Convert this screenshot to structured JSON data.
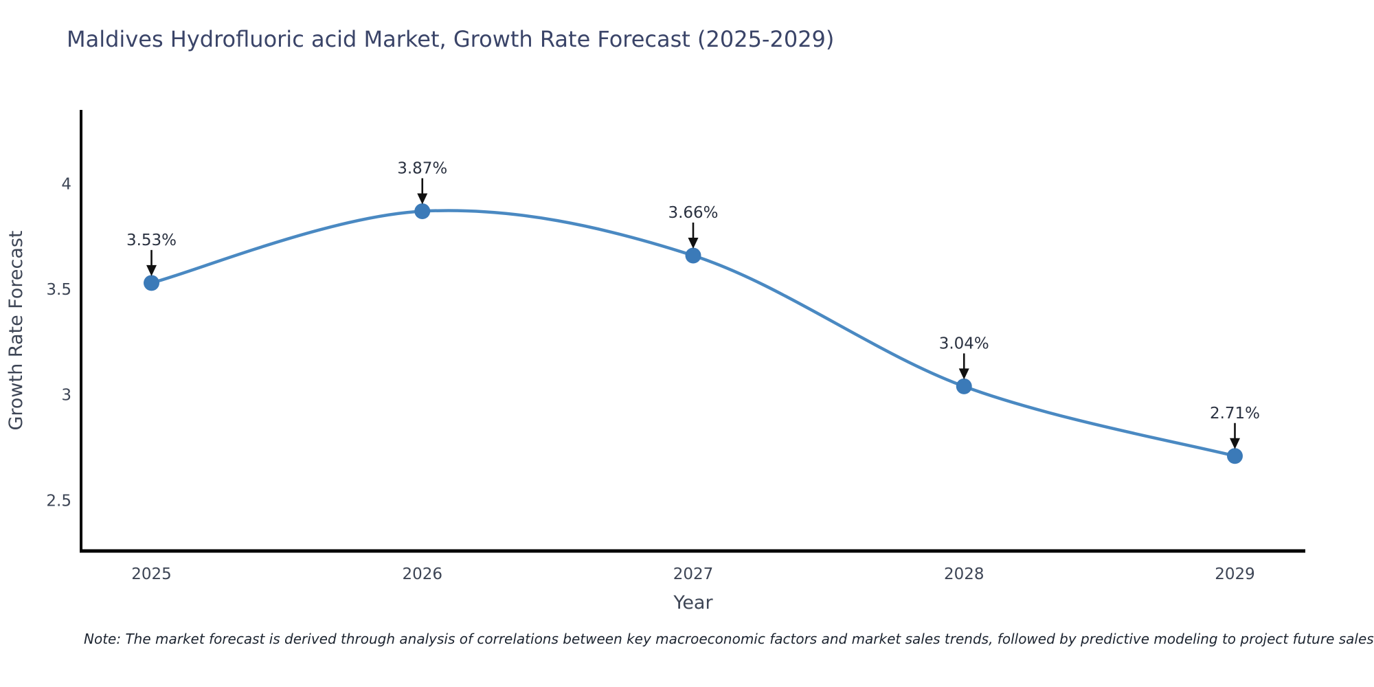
{
  "title": "Maldives Hydrofluoric acid Market, Growth Rate Forecast (2025-2029)",
  "note": "Note: The market forecast is derived through analysis of correlations between key macroeconomic factors and market sales trends, followed by predictive modeling to project future sales",
  "chart_data": {
    "type": "line",
    "x": [
      2025,
      2026,
      2027,
      2028,
      2029
    ],
    "values": [
      3.53,
      3.87,
      3.66,
      3.04,
      2.71
    ],
    "point_labels": [
      "3.53%",
      "3.87%",
      "3.66%",
      "3.04%",
      "2.71%"
    ],
    "title": "Maldives Hydrofluoric acid Market, Growth Rate Forecast (2025-2029)",
    "xlabel": "Year",
    "ylabel": "Growth Rate Forecast",
    "x_ticks": [
      2025,
      2026,
      2027,
      2028,
      2029
    ],
    "x_tick_labels": [
      "2025",
      "2026",
      "2027",
      "2028",
      "2029"
    ],
    "y_ticks": [
      2.5,
      3,
      3.5,
      4
    ],
    "y_tick_labels": [
      "2.5",
      "3",
      "3.5",
      "4"
    ],
    "xlim": [
      2024.74,
      2029.26
    ],
    "ylim": [
      2.26,
      4.35
    ],
    "grid": false,
    "legend": "none",
    "line_shape": "spline",
    "marker_size": 23,
    "colors": {
      "line": "#4a89c2",
      "marker": "#3b7ab8",
      "axis": "#000000",
      "tick_label": "#3d4555",
      "axis_title": "#3d4555",
      "title": "#3a4468",
      "annotation_text": "#2a3140",
      "arrow": "#111111"
    }
  }
}
